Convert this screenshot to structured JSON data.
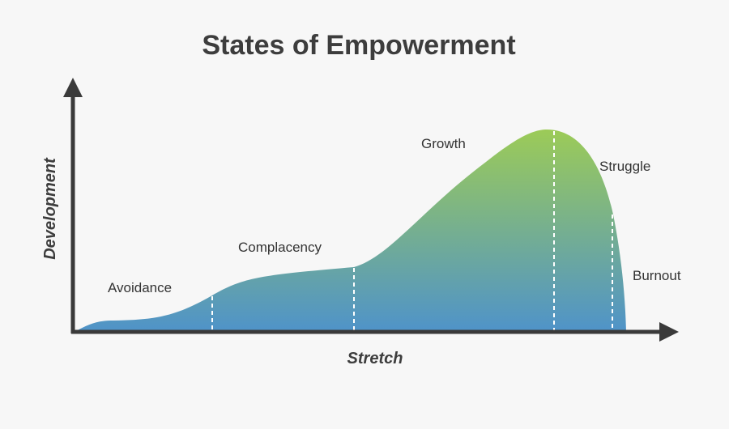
{
  "title": "States of Empowerment",
  "axes": {
    "x_label": "Stretch",
    "y_label": "Development"
  },
  "stages": [
    "Avoidance",
    "Complacency",
    "Growth",
    "Struggle",
    "Burnout"
  ],
  "colors": {
    "curve_top": "#9ccb57",
    "curve_bottom": "#4f93c9",
    "axis": "#3a3a3a",
    "background": "#f7f7f7"
  },
  "icons": {
    "x_axis_end": "arrow-right-icon",
    "y_axis_end": "arrow-up-icon"
  }
}
